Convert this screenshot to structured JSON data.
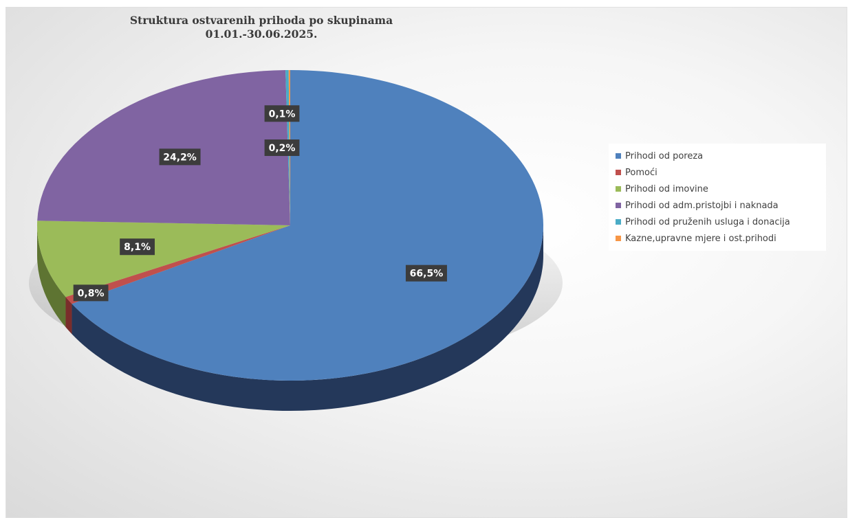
{
  "chart_data": {
    "type": "pie",
    "title": [
      "Struktura ostvarenih prihoda po skupinama",
      "01.01.-30.06.2025."
    ],
    "legend_position": "right",
    "style": "3d",
    "series": [
      {
        "name": "",
        "slices": [
          {
            "label": "Prihodi od poreza",
            "value": 66.5,
            "display": "66,5%",
            "color": "#4F81BD",
            "side_color": "#24385A"
          },
          {
            "label": "Pomoći",
            "value": 0.8,
            "display": "0,8%",
            "color": "#C0504D",
            "side_color": "#7A2D2B"
          },
          {
            "label": "Prihodi od imovine",
            "value": 8.1,
            "display": "8,1%",
            "color": "#9BBB59",
            "side_color": "#5E7432"
          },
          {
            "label": "Prihodi od adm.pristojbi i naknada",
            "value": 24.2,
            "display": "24,2%",
            "color": "#8064A2",
            "side_color": "#4A3A60"
          },
          {
            "label": "Prihodi od pruženih usluga i donacija",
            "value": 0.2,
            "display": "0,2%",
            "color": "#4BACC6",
            "side_color": "#2A6A7B"
          },
          {
            "label": "Kazne,upravne mjere i ost.prihodi",
            "value": 0.1,
            "display": "0,1%",
            "color": "#F79646",
            "side_color": "#A05A1F"
          }
        ]
      }
    ]
  }
}
